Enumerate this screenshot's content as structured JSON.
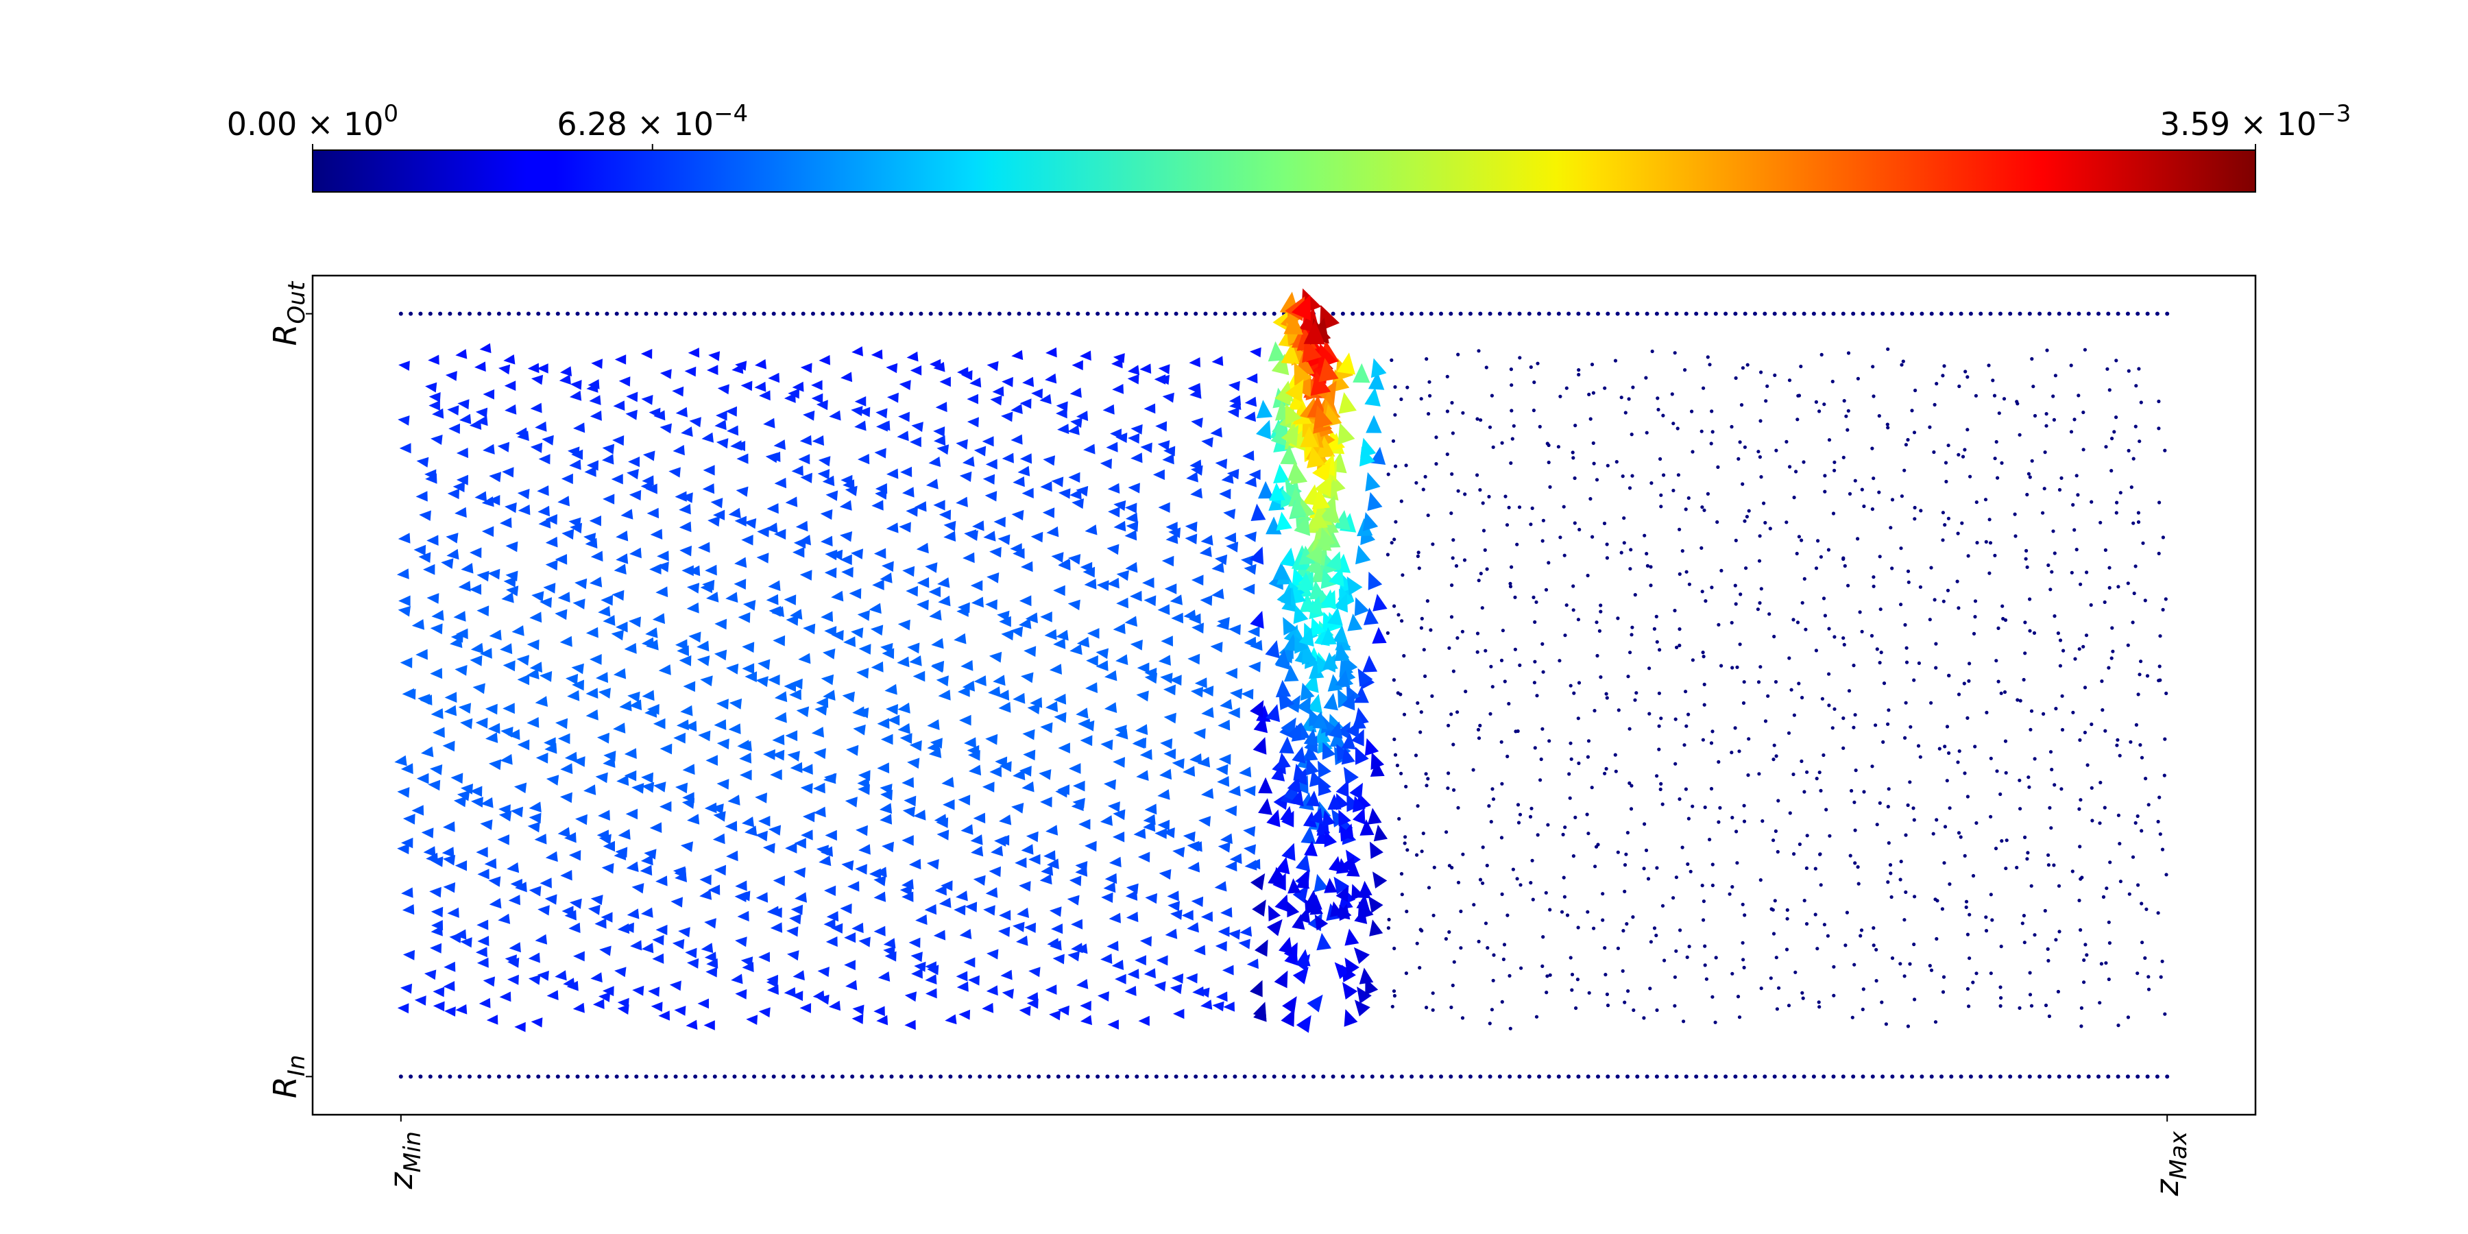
{
  "chart_data": {
    "type": "quiver",
    "title": "",
    "colorbar": {
      "colormap": "jet",
      "min": 0.0,
      "max": 0.00359,
      "placement": "top",
      "ticks": [
        {
          "value": 0.0,
          "base": "0.00",
          "exp": "0"
        },
        {
          "value": 0.000628,
          "base": "6.28",
          "exp": "−4"
        },
        {
          "value": 0.00359,
          "base": "3.59",
          "exp": "−3"
        }
      ]
    },
    "x_axis": {
      "range": [
        -0.05,
        1.05
      ],
      "ticks": [
        {
          "value": 0,
          "main": "z",
          "sub": "Min"
        },
        {
          "value": 1,
          "main": "z",
          "sub": "Max"
        }
      ],
      "tick_label_rotation": -90
    },
    "y_axis": {
      "range": [
        -0.05,
        1.05
      ],
      "ticks": [
        {
          "value": 0,
          "main": "R",
          "sub": "In"
        },
        {
          "value": 1,
          "main": "R",
          "sub": "Out"
        }
      ],
      "tick_label_rotation": -90
    },
    "grid": false,
    "field": {
      "description_visible": false,
      "boundary_rows": [
        0,
        1
      ],
      "source_region": {
        "x": [
          0.49,
          0.55
        ],
        "y_top": 1.0
      },
      "peak_magnitude": 0.00359,
      "left_region_magnitude": 0.0007,
      "right_region_magnitude": 0.0,
      "colors": {
        "axis": "#000000",
        "background": "#ffffff"
      }
    }
  }
}
